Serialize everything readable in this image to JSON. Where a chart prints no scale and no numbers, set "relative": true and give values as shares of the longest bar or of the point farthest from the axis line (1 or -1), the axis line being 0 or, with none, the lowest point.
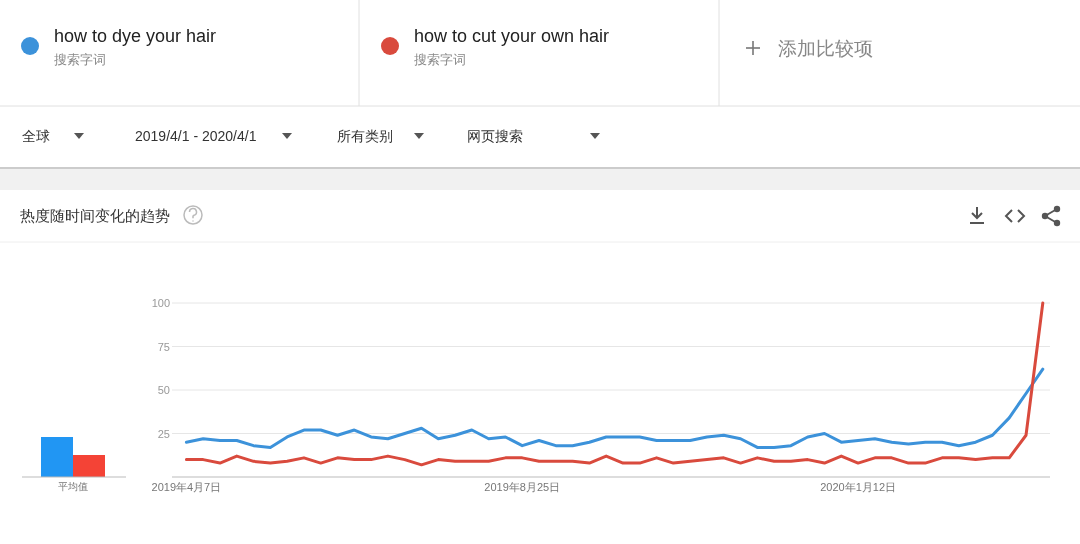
{
  "chart_data": [
    {
      "type": "bar",
      "relative": true,
      "categories": [
        "平均值"
      ],
      "series": [
        {
          "color": "#2196f3",
          "values": [
            1
          ]
        },
        {
          "color": "#f44336",
          "values": [
            0.55
          ]
        }
      ]
    },
    {
      "type": "line",
      "title": "热度随时间变化的趋势",
      "legend": "top",
      "grid": "y",
      "annotations": [
        "搜索字词",
        "搜索字词",
        "添加比较项",
        "全球",
        "2019/4/1 - 2020/4/1",
        "所有类别",
        "网页搜索"
      ],
      "x": [
        "2019-04-07",
        "2019-04-14",
        "2019-04-21",
        "2019-04-28",
        "2019-05-05",
        "2019-05-12",
        "2019-05-19",
        "2019-05-26",
        "2019-06-02",
        "2019-06-09",
        "2019-06-16",
        "2019-06-23",
        "2019-06-30",
        "2019-07-07",
        "2019-07-14",
        "2019-07-21",
        "2019-07-28",
        "2019-08-04",
        "2019-08-11",
        "2019-08-18",
        "2019-08-25",
        "2019-09-01",
        "2019-09-08",
        "2019-09-15",
        "2019-09-22",
        "2019-09-29",
        "2019-10-06",
        "2019-10-13",
        "2019-10-20",
        "2019-10-27",
        "2019-11-03",
        "2019-11-10",
        "2019-11-17",
        "2019-11-24",
        "2019-12-01",
        "2019-12-08",
        "2019-12-15",
        "2019-12-22",
        "2019-12-29",
        "2020-01-05",
        "2020-01-12",
        "2020-01-19",
        "2020-01-26",
        "2020-02-02",
        "2020-02-09",
        "2020-02-16",
        "2020-02-23",
        "2020-03-01",
        "2020-03-08",
        "2020-03-15",
        "2020-03-22",
        "2020-03-29"
      ],
      "xlim": [
        "2019-04-01",
        "2020-04-01"
      ],
      "xticks": [
        {
          "value": "2019-04-07",
          "label": "2019年4月7日"
        },
        {
          "value": "2019-08-25",
          "label": "2019年8月25日"
        },
        {
          "value": "2020-01-12",
          "label": "2020年1月12日"
        }
      ],
      "ylim": [
        0,
        100
      ],
      "yticks": [
        25,
        50,
        75,
        100
      ],
      "series": [
        {
          "name": "how to dye your hair",
          "color": "#3c92da",
          "values": [
            20,
            22,
            21,
            21,
            18,
            17,
            23,
            27,
            27,
            24,
            27,
            23,
            22,
            25,
            28,
            22,
            24,
            27,
            22,
            23,
            18,
            21,
            18,
            18,
            20,
            23,
            23,
            23,
            21,
            21,
            21,
            23,
            24,
            22,
            17,
            17,
            18,
            23,
            25,
            20,
            21,
            22,
            20,
            19,
            20,
            20,
            18,
            20,
            24,
            34,
            48,
            62
          ]
        },
        {
          "name": "how to cut your own hair",
          "color": "#d94a3d",
          "values": [
            10,
            10,
            8,
            12,
            9,
            8,
            9,
            11,
            8,
            11,
            10,
            10,
            12,
            10,
            7,
            10,
            9,
            9,
            9,
            11,
            11,
            9,
            9,
            9,
            8,
            12,
            8,
            8,
            11,
            8,
            9,
            10,
            11,
            8,
            11,
            9,
            9,
            10,
            8,
            12,
            8,
            11,
            11,
            8,
            8,
            11,
            11,
            10,
            11,
            11,
            24,
            100
          ]
        }
      ]
    }
  ]
}
